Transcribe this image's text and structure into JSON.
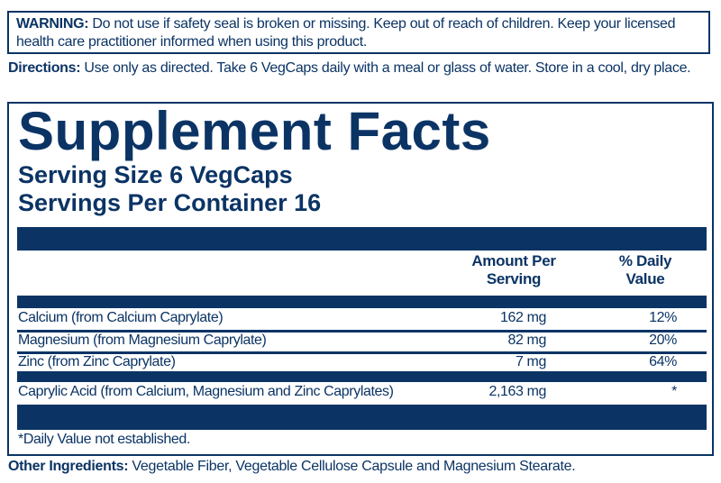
{
  "warning": {
    "label": "WARNING:",
    "text": " Do not use if safety seal is broken or missing. Keep out of reach of children. Keep your licensed health care practitioner informed when using this product."
  },
  "directions": {
    "label": "Directions:",
    "text": " Use only as directed. Take 6 VegCaps daily with a meal or glass of water. Store in a cool, dry place."
  },
  "facts": {
    "title": "Supplement Facts",
    "serving_size": "Serving Size 6 VegCaps",
    "servings_per_container": "Servings Per Container 16",
    "header_amount": "Amount Per Serving",
    "header_dv": "% Daily Value",
    "rows": [
      {
        "name": "Calcium (from Calcium Caprylate)",
        "amount": "162 mg",
        "dv": "12%"
      },
      {
        "name": "Magnesium (from Magnesium Caprylate)",
        "amount": "82 mg",
        "dv": "20%"
      },
      {
        "name": "Zinc (from Zinc Caprylate)",
        "amount": "7 mg",
        "dv": "64%"
      },
      {
        "name": "Caprylic Acid (from Calcium, Magnesium and Zinc Caprylates)",
        "amount": "2,163 mg",
        "dv": "*"
      }
    ],
    "footnote": "*Daily Value not established."
  },
  "other": {
    "label": "Other Ingredients:",
    "text": " Vegetable Fiber, Vegetable Cellulose Capsule and Magnesium Stearate."
  },
  "colors": {
    "navy": "#0b3465"
  }
}
